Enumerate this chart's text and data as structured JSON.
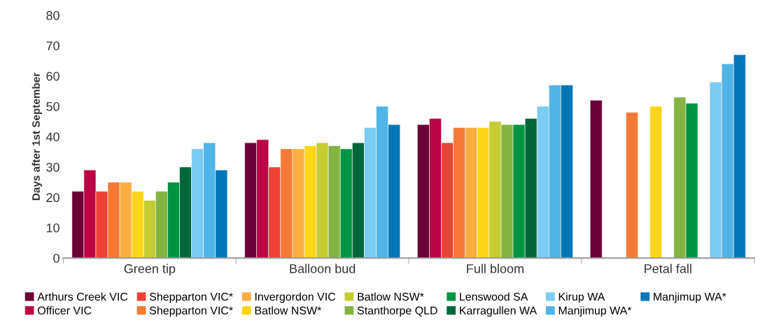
{
  "chart_data": {
    "type": "bar",
    "ylabel": "Days after 1st September",
    "categories": [
      "Green tip",
      "Balloon bud",
      "Full bloom",
      "Petal fall"
    ],
    "ylim": [
      0,
      80
    ],
    "yticks": [
      0,
      10,
      20,
      30,
      40,
      50,
      60,
      70,
      80
    ],
    "grid": false,
    "legend": "bottom",
    "series": [
      {
        "name": "Arthurs Creek VIC",
        "color": "#6b0036",
        "values": [
          22,
          38,
          44,
          52
        ]
      },
      {
        "name": "Officer VIC",
        "color": "#bb0545",
        "values": [
          29,
          39,
          46,
          null
        ]
      },
      {
        "name": "Shepparton VIC*",
        "color": "#ef4136",
        "values": [
          22,
          30,
          38,
          null
        ]
      },
      {
        "name": "Shepparton VIC*",
        "color": "#f47a35",
        "values": [
          25,
          36,
          43,
          48
        ]
      },
      {
        "name": "Invergordon VIC",
        "color": "#fbad42",
        "values": [
          25,
          36,
          43,
          null
        ]
      },
      {
        "name": "Batlow NSW*",
        "color": "#ffd51a",
        "values": [
          22,
          37,
          43,
          50
        ]
      },
      {
        "name": "Batlow NSW*",
        "color": "#c4cc32",
        "values": [
          19,
          38,
          45,
          null
        ]
      },
      {
        "name": "Stanthorpe QLD",
        "color": "#84b341",
        "values": [
          22,
          37,
          44,
          53
        ]
      },
      {
        "name": "Lenswood SA",
        "color": "#009444",
        "values": [
          25,
          36,
          44,
          51
        ]
      },
      {
        "name": "Karragullen WA",
        "color": "#006838",
        "values": [
          30,
          38,
          46,
          null
        ]
      },
      {
        "name": "Kirup WA",
        "color": "#7bcbf2",
        "values": [
          36,
          43,
          50,
          58
        ]
      },
      {
        "name": "Manjimup WA*",
        "color": "#4fb5e6",
        "values": [
          38,
          50,
          57,
          64
        ]
      },
      {
        "name": "Manjimup WA*",
        "color": "#0076b6",
        "values": [
          29,
          44,
          57,
          67
        ]
      }
    ]
  }
}
